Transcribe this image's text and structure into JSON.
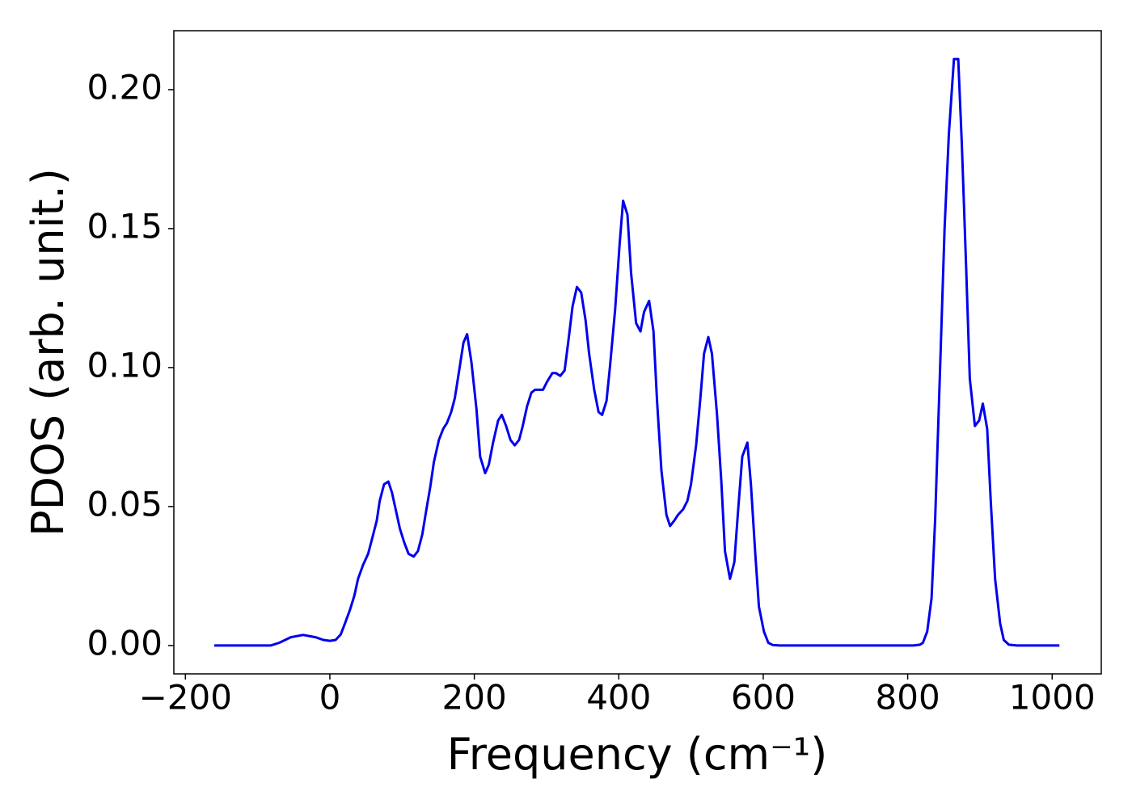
{
  "chart_data": {
    "type": "line",
    "xlabel": "Frequency (cm⁻¹)",
    "ylabel": "PDOS (arb. unit.)",
    "xlim": [
      -216,
      1068
    ],
    "ylim": [
      -0.0102,
      0.2212
    ],
    "xticks": [
      {
        "value": -200,
        "label": "−200"
      },
      0,
      200,
      400,
      600,
      800,
      1000
    ],
    "yticks": [
      {
        "value": 0,
        "label": "0.00"
      },
      {
        "value": 0.05,
        "label": "0.05"
      },
      {
        "value": 0.1,
        "label": "0.10"
      },
      {
        "value": 0.15,
        "label": "0.15"
      },
      {
        "value": 0.2,
        "label": "0.20"
      }
    ],
    "grid": false,
    "series": [
      {
        "color": "#0000ee",
        "x": [
          -160,
          -82,
          -70,
          -54,
          -37,
          -20,
          -9,
          0,
          8,
          15,
          21,
          28,
          34,
          39,
          46,
          53,
          58,
          65,
          69,
          75,
          81,
          86,
          92,
          97,
          103,
          109,
          116,
          122,
          128,
          133,
          139,
          144,
          151,
          157,
          162,
          168,
          173,
          179,
          185,
          190,
          196,
          203,
          208,
          215,
          220,
          226,
          233,
          238,
          244,
          250,
          256,
          262,
          267,
          273,
          279,
          284,
          290,
          295,
          301,
          308,
          313,
          319,
          325,
          330,
          336,
          342,
          348,
          354,
          359,
          366,
          372,
          377,
          383,
          388,
          395,
          401,
          406,
          412,
          417,
          424,
          430,
          435,
          442,
          448,
          453,
          459,
          466,
          471,
          477,
          482,
          489,
          495,
          500,
          507,
          513,
          518,
          524,
          529,
          536,
          542,
          547,
          554,
          560,
          565,
          571,
          578,
          583,
          589,
          594,
          601,
          607,
          613,
          623,
          808,
          817,
          821,
          827,
          833,
          838,
          845,
          851,
          857,
          864,
          870,
          875,
          881,
          886,
          893,
          899,
          904,
          910,
          915,
          921,
          928,
          933,
          940,
          951,
          1010
        ],
        "values": [
          0,
          0,
          0.001,
          0.003,
          0.0038,
          0.003,
          0.002,
          0.0017,
          0.002,
          0.004,
          0.008,
          0.013,
          0.018,
          0.024,
          0.029,
          0.033,
          0.038,
          0.045,
          0.052,
          0.058,
          0.059,
          0.055,
          0.048,
          0.042,
          0.037,
          0.033,
          0.032,
          0.034,
          0.04,
          0.048,
          0.057,
          0.066,
          0.074,
          0.078,
          0.08,
          0.084,
          0.089,
          0.099,
          0.109,
          0.112,
          0.102,
          0.085,
          0.068,
          0.062,
          0.065,
          0.073,
          0.081,
          0.083,
          0.079,
          0.074,
          0.072,
          0.074,
          0.079,
          0.086,
          0.091,
          0.092,
          0.092,
          0.092,
          0.095,
          0.098,
          0.098,
          0.097,
          0.099,
          0.109,
          0.122,
          0.129,
          0.127,
          0.117,
          0.105,
          0.092,
          0.084,
          0.083,
          0.088,
          0.101,
          0.121,
          0.144,
          0.16,
          0.155,
          0.134,
          0.116,
          0.113,
          0.12,
          0.124,
          0.113,
          0.088,
          0.063,
          0.047,
          0.043,
          0.045,
          0.047,
          0.049,
          0.052,
          0.058,
          0.072,
          0.089,
          0.105,
          0.111,
          0.105,
          0.083,
          0.059,
          0.034,
          0.024,
          0.03,
          0.048,
          0.068,
          0.073,
          0.058,
          0.033,
          0.014,
          0.005,
          0.001,
          0.0002,
          0,
          0,
          0.0003,
          0.001,
          0.005,
          0.017,
          0.045,
          0.101,
          0.15,
          0.184,
          0.211,
          0.211,
          0.18,
          0.135,
          0.096,
          0.079,
          0.081,
          0.087,
          0.078,
          0.052,
          0.024,
          0.008,
          0.002,
          0.0003,
          0,
          0
        ]
      }
    ]
  }
}
